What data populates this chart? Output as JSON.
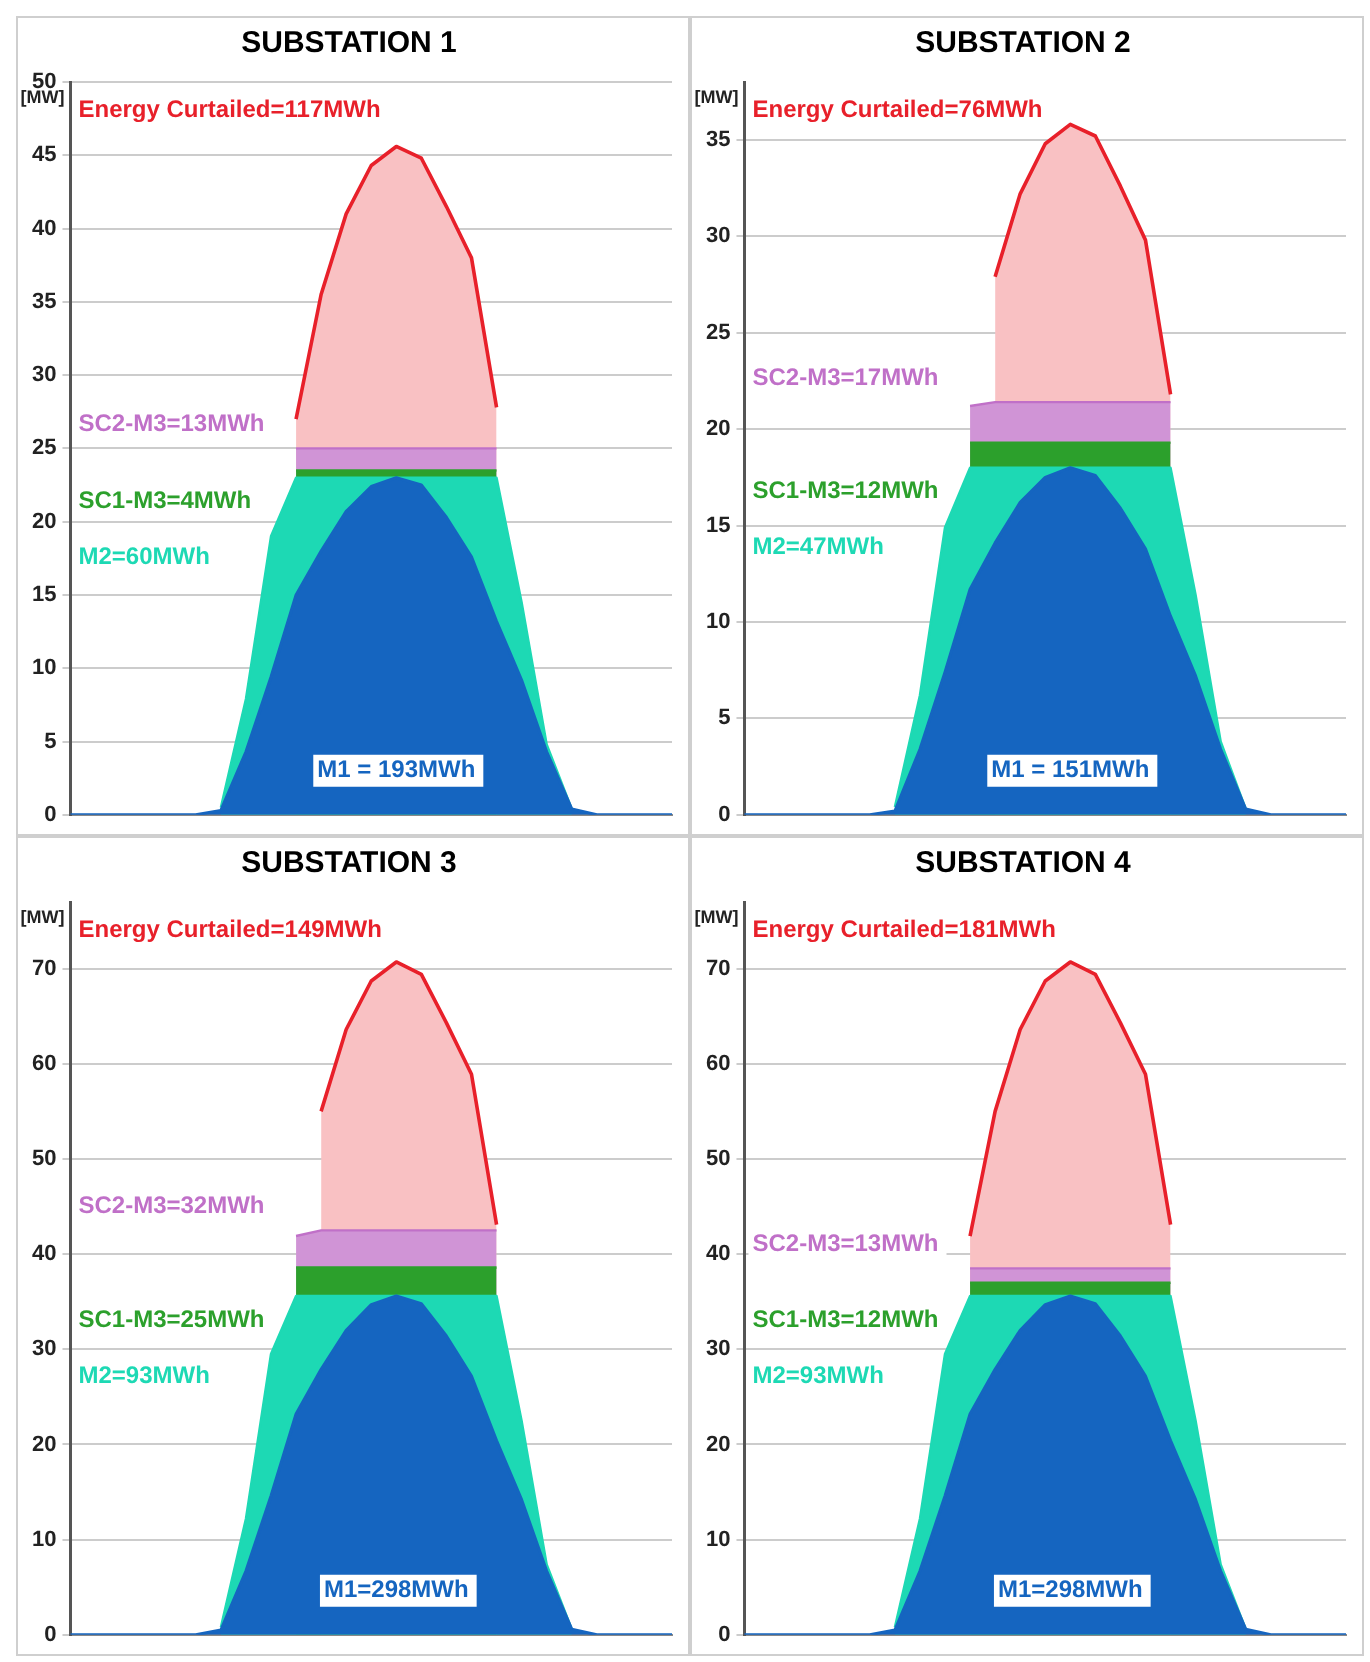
{
  "chart_data": [
    {
      "type": "area",
      "title": "SUBSTATION 1",
      "ylabel": "[MW]",
      "stacked": true,
      "grid": "y",
      "legend": false,
      "marker": "none",
      "tick_labels": "y",
      "categories": [
        null,
        null,
        null,
        null,
        null,
        null,
        null,
        null,
        null,
        null,
        null,
        null,
        null,
        null,
        null,
        null,
        null,
        null,
        null,
        null,
        null,
        null,
        null,
        null,
        null
      ],
      "ylim": [
        0,
        50
      ],
      "yticks": [
        0,
        5,
        10,
        15,
        20,
        25,
        30,
        35,
        40,
        45,
        50
      ],
      "series": [
        {
          "name": "M1 = 193MWh",
          "color": "#1565c0",
          "values": [
            0,
            0,
            0,
            0,
            0,
            0,
            0.3,
            4.3,
            9.4,
            15,
            18,
            20.7,
            22.4,
            23,
            22.5,
            20.3,
            17.6,
            13.2,
            9.2,
            4.3,
            0.4,
            0,
            0,
            0,
            0
          ]
        },
        {
          "name": "M2=60MWh",
          "color": "#1dd9b4",
          "values": [
            null,
            null,
            null,
            null,
            null,
            null,
            0.2,
            3.6,
            9.6,
            8,
            5,
            2.3,
            0.6,
            0,
            0.5,
            2.7,
            5.4,
            9.8,
            5.3,
            0.5,
            0,
            null,
            null,
            null,
            null
          ]
        },
        {
          "name": "SC1-M3=4MWh",
          "color": "#2ca02c",
          "values": [
            null,
            null,
            null,
            null,
            null,
            null,
            null,
            null,
            null,
            0.5,
            0.5,
            0.5,
            0.5,
            0.5,
            0.5,
            0.5,
            0.5,
            0.5,
            null,
            null,
            null,
            null,
            null,
            null,
            null
          ]
        },
        {
          "name": "SC2-M3=13MWh",
          "color": "#c070c8",
          "values": [
            null,
            null,
            null,
            null,
            null,
            null,
            null,
            null,
            null,
            1.5,
            1.5,
            1.5,
            1.5,
            1.5,
            1.5,
            1.5,
            1.5,
            1.5,
            null,
            null,
            null,
            null,
            null,
            null,
            null
          ]
        },
        {
          "name": "Energy Curtailed=117MWh",
          "color": "#e8202a",
          "values": [
            null,
            null,
            null,
            null,
            null,
            null,
            null,
            null,
            null,
            2,
            10.5,
            16,
            19.3,
            20.6,
            19.8,
            16.5,
            13,
            2.8,
            null,
            null,
            null,
            null,
            null,
            null,
            null
          ]
        }
      ]
    },
    {
      "type": "area",
      "title": "SUBSTATION 2",
      "ylabel": "[MW]",
      "stacked": true,
      "grid": "y",
      "legend": false,
      "marker": "none",
      "tick_labels": "y",
      "categories": [
        null,
        null,
        null,
        null,
        null,
        null,
        null,
        null,
        null,
        null,
        null,
        null,
        null,
        null,
        null,
        null,
        null,
        null,
        null,
        null,
        null,
        null,
        null,
        null,
        null
      ],
      "ylim": [
        0,
        38
      ],
      "yticks": [
        0,
        5,
        10,
        15,
        20,
        25,
        30,
        35
      ],
      "series": [
        {
          "name": "M1 = 151MWh",
          "color": "#1565c0",
          "values": [
            0,
            0,
            0,
            0,
            0,
            0,
            0.2,
            3.4,
            7.4,
            11.7,
            14.1,
            16.2,
            17.5,
            18,
            17.6,
            15.9,
            13.8,
            10.3,
            7.2,
            3.4,
            0.3,
            0,
            0,
            0,
            0
          ]
        },
        {
          "name": "M2=47MWh",
          "color": "#1dd9b4",
          "values": [
            null,
            null,
            null,
            null,
            null,
            null,
            0.2,
            2.8,
            7.5,
            6.3,
            3.9,
            1.8,
            0.5,
            0,
            0.4,
            2.1,
            4.2,
            7.7,
            4.2,
            0.4,
            0,
            null,
            null,
            null,
            null
          ]
        },
        {
          "name": "SC1-M3=12MWh",
          "color": "#2ca02c",
          "values": [
            null,
            null,
            null,
            null,
            null,
            null,
            null,
            null,
            null,
            1.3,
            1.3,
            1.3,
            1.3,
            1.3,
            1.3,
            1.3,
            1.3,
            1.3,
            null,
            null,
            null,
            null,
            null,
            null,
            null
          ]
        },
        {
          "name": "SC2-M3=17MWh",
          "color": "#c070c8",
          "values": [
            null,
            null,
            null,
            null,
            null,
            null,
            null,
            null,
            null,
            1.9,
            2.1,
            2.1,
            2.1,
            2.1,
            2.1,
            2.1,
            2.1,
            2.1,
            null,
            null,
            null,
            null,
            null,
            null,
            null
          ]
        },
        {
          "name": "Energy Curtailed=76MWh",
          "color": "#e8202a",
          "values": [
            null,
            null,
            null,
            null,
            null,
            null,
            null,
            null,
            null,
            null,
            6.5,
            10.8,
            13.4,
            14.4,
            13.8,
            11.2,
            8.4,
            0.4,
            null,
            null,
            null,
            null,
            null,
            null,
            null
          ]
        }
      ]
    },
    {
      "type": "area",
      "title": "SUBSTATION 3",
      "ylabel": "[MW]",
      "stacked": true,
      "grid": "y",
      "legend": false,
      "marker": "none",
      "tick_labels": "y",
      "categories": [
        null,
        null,
        null,
        null,
        null,
        null,
        null,
        null,
        null,
        null,
        null,
        null,
        null,
        null,
        null,
        null,
        null,
        null,
        null,
        null,
        null,
        null,
        null,
        null,
        null
      ],
      "ylim": [
        0,
        77
      ],
      "yticks": [
        0,
        10,
        20,
        30,
        40,
        50,
        60,
        70
      ],
      "series": [
        {
          "name": "M1=298MWh",
          "color": "#1565c0",
          "values": [
            0,
            0,
            0,
            0,
            0,
            0,
            0.5,
            6.7,
            14.6,
            23.2,
            27.9,
            32,
            34.7,
            35.6,
            34.8,
            31.4,
            27.2,
            20.4,
            14.2,
            6.7,
            0.6,
            0,
            0,
            0,
            0
          ]
        },
        {
          "name": "M2=93MWh",
          "color": "#1dd9b4",
          "values": [
            null,
            null,
            null,
            null,
            null,
            null,
            0.3,
            5.5,
            14.9,
            12.4,
            7.7,
            3.6,
            0.9,
            0,
            0.8,
            4.2,
            8.4,
            15.2,
            8.3,
            0.7,
            0,
            null,
            null,
            null,
            null
          ]
        },
        {
          "name": "SC1-M3=25MWh",
          "color": "#2ca02c",
          "values": [
            null,
            null,
            null,
            null,
            null,
            null,
            null,
            null,
            null,
            3,
            3,
            3,
            3,
            3,
            3,
            3,
            3,
            3,
            null,
            null,
            null,
            null,
            null,
            null,
            null
          ]
        },
        {
          "name": "SC2-M3=32MWh",
          "color": "#c070c8",
          "values": [
            null,
            null,
            null,
            null,
            null,
            null,
            null,
            null,
            null,
            3.3,
            3.9,
            3.9,
            3.9,
            3.9,
            3.9,
            3.9,
            3.9,
            3.9,
            null,
            null,
            null,
            null,
            null,
            null,
            null
          ]
        },
        {
          "name": "Energy Curtailed=149MWh",
          "color": "#e8202a",
          "values": [
            null,
            null,
            null,
            null,
            null,
            null,
            null,
            null,
            null,
            null,
            12.5,
            21.1,
            26.2,
            28.2,
            26.9,
            21.8,
            16.4,
            0.6,
            null,
            null,
            null,
            null,
            null,
            null,
            null
          ]
        }
      ]
    },
    {
      "type": "area",
      "title": "SUBSTATION 4",
      "ylabel": "[MW]",
      "stacked": true,
      "grid": "y",
      "legend": false,
      "marker": "none",
      "tick_labels": "y",
      "categories": [
        null,
        null,
        null,
        null,
        null,
        null,
        null,
        null,
        null,
        null,
        null,
        null,
        null,
        null,
        null,
        null,
        null,
        null,
        null,
        null,
        null,
        null,
        null,
        null,
        null
      ],
      "ylim": [
        0,
        77
      ],
      "yticks": [
        0,
        10,
        20,
        30,
        40,
        50,
        60,
        70
      ],
      "series": [
        {
          "name": "M1=298MWh",
          "color": "#1565c0",
          "values": [
            0,
            0,
            0,
            0,
            0,
            0,
            0.5,
            6.7,
            14.6,
            23.2,
            27.9,
            32,
            34.7,
            35.6,
            34.8,
            31.4,
            27.2,
            20.4,
            14.2,
            6.7,
            0.6,
            0,
            0,
            0,
            0
          ]
        },
        {
          "name": "M2=93MWh",
          "color": "#1dd9b4",
          "values": [
            null,
            null,
            null,
            null,
            null,
            null,
            0.3,
            5.5,
            14.9,
            12.4,
            7.7,
            3.6,
            0.9,
            0,
            0.8,
            4.2,
            8.4,
            15.2,
            8.3,
            0.7,
            0,
            null,
            null,
            null,
            null
          ]
        },
        {
          "name": "SC1-M3=12MWh",
          "color": "#2ca02c",
          "values": [
            null,
            null,
            null,
            null,
            null,
            null,
            null,
            null,
            null,
            1.4,
            1.4,
            1.4,
            1.4,
            1.4,
            1.4,
            1.4,
            1.4,
            1.4,
            null,
            null,
            null,
            null,
            null,
            null,
            null
          ]
        },
        {
          "name": "SC2-M3=13MWh",
          "color": "#c070c8",
          "values": [
            null,
            null,
            null,
            null,
            null,
            null,
            null,
            null,
            null,
            1.5,
            1.5,
            1.5,
            1.5,
            1.5,
            1.5,
            1.5,
            1.5,
            1.5,
            null,
            null,
            null,
            null,
            null,
            null,
            null
          ]
        },
        {
          "name": "Energy Curtailed=181MWh",
          "color": "#e8202a",
          "values": [
            null,
            null,
            null,
            null,
            null,
            null,
            null,
            null,
            null,
            3.4,
            16.5,
            25.1,
            30.2,
            32.2,
            30.9,
            25.8,
            20.4,
            4.6,
            null,
            null,
            null,
            null,
            null,
            null,
            null
          ]
        }
      ]
    }
  ]
}
